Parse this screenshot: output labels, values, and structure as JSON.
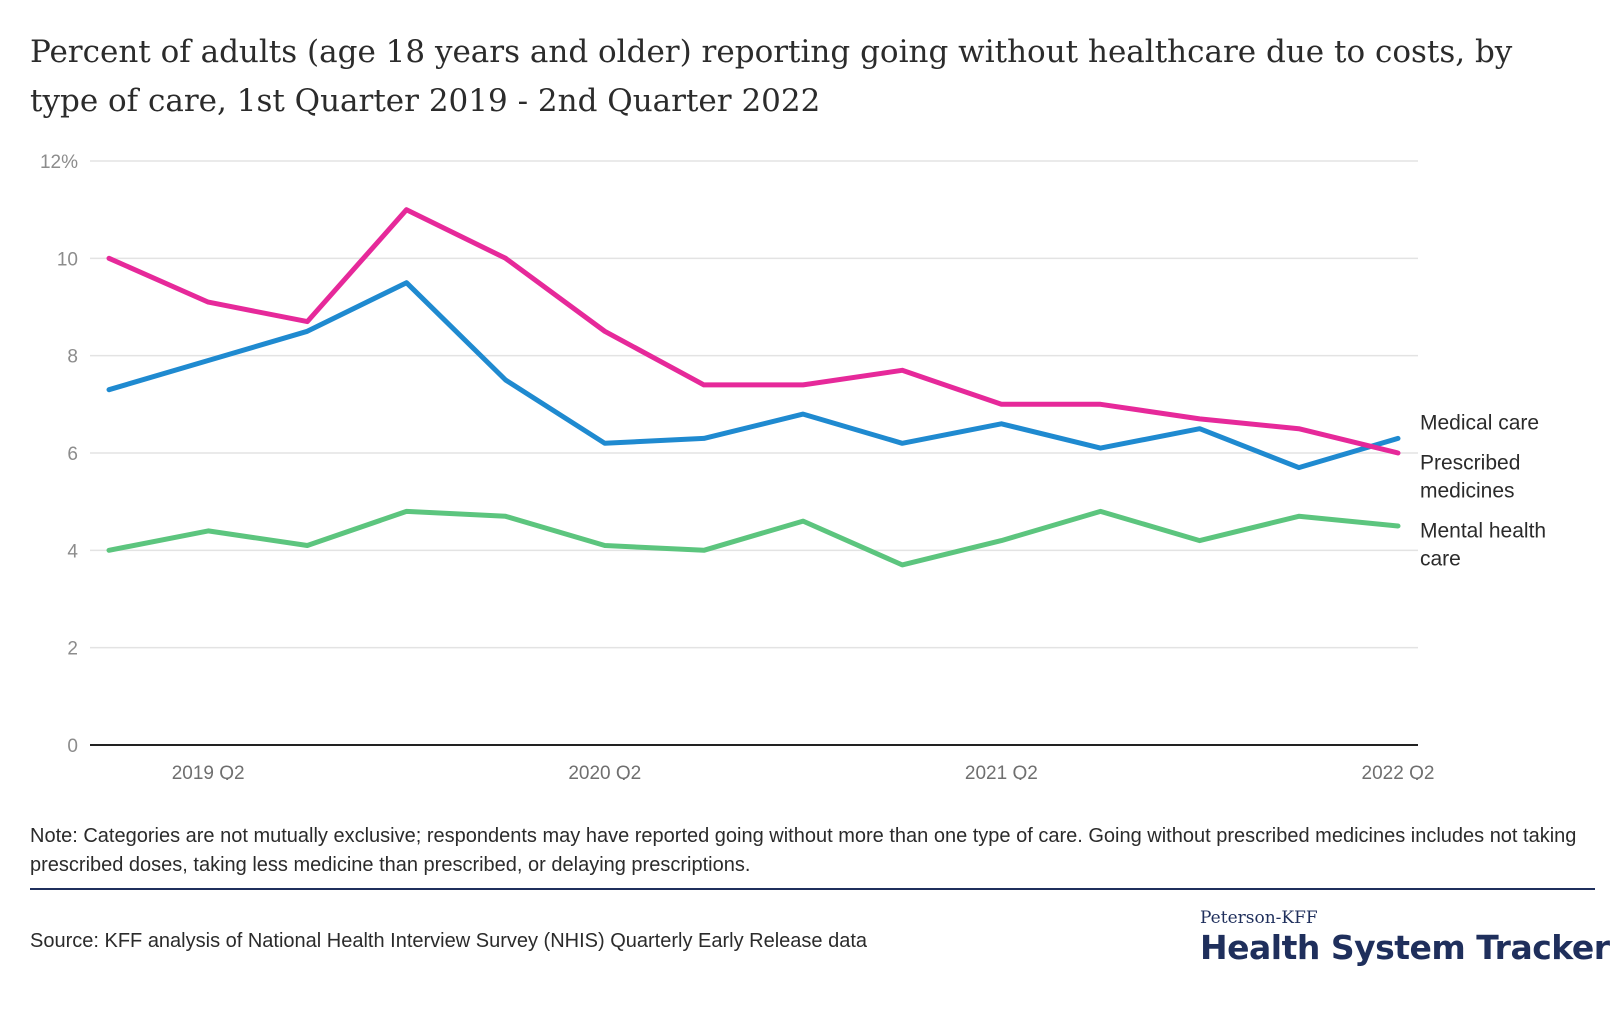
{
  "title": "Percent of adults (age 18 years and older) reporting going without healthcare due to costs, by type of care, 1st Quarter 2019 - 2nd Quarter 2022",
  "note": "Note: Categories are not mutually exclusive; respondents may have reported going without more than one type of care. Going without prescribed medicines includes not taking prescribed doses, taking less medicine than prescribed, or delaying prescriptions.",
  "source": "Source: KFF analysis of National Health Interview Survey (NHIS) Quarterly Early Release data",
  "logo": {
    "top": "Peterson-KFF",
    "main": "Health System Tracker"
  },
  "chart_data": {
    "type": "line",
    "title": "Percent of adults (age 18 years and older) reporting going without healthcare due to costs, by type of care, 1st Quarter 2019 - 2nd Quarter 2022",
    "x": [
      "2019 Q1",
      "2019 Q2",
      "2019 Q3",
      "2019 Q4",
      "2020 Q1",
      "2020 Q2",
      "2020 Q3",
      "2020 Q4",
      "2021 Q1",
      "2021 Q2",
      "2021 Q3",
      "2021 Q4",
      "2022 Q1",
      "2022 Q2"
    ],
    "x_tick_labels": [
      "2019 Q2",
      "2020 Q2",
      "2021 Q2",
      "2022 Q2"
    ],
    "y_ticks": [
      "12%",
      "10",
      "8",
      "6",
      "4",
      "2",
      "0"
    ],
    "ylim": [
      0,
      12
    ],
    "grid": true,
    "legend": "inline-right",
    "series": [
      {
        "name": "Medical care",
        "label_lines": [
          "Medical care"
        ],
        "color": "#1f8ad0",
        "values": [
          7.3,
          7.9,
          8.5,
          9.5,
          7.5,
          6.2,
          6.3,
          6.8,
          6.2,
          6.6,
          6.1,
          6.5,
          5.7,
          6.3
        ]
      },
      {
        "name": "Prescribed medicines",
        "label_lines": [
          "Prescribed",
          "medicines"
        ],
        "color": "#e6299a",
        "values": [
          10.0,
          9.1,
          8.7,
          11.0,
          10.0,
          8.5,
          7.4,
          7.4,
          7.7,
          7.0,
          7.0,
          6.7,
          6.5,
          6.0
        ]
      },
      {
        "name": "Mental health care",
        "label_lines": [
          "Mental health",
          "care"
        ],
        "color": "#5cc57e",
        "values": [
          4.0,
          4.4,
          4.1,
          4.8,
          4.7,
          4.1,
          4.0,
          4.6,
          3.7,
          4.2,
          4.8,
          4.2,
          4.7,
          4.5
        ]
      }
    ]
  }
}
